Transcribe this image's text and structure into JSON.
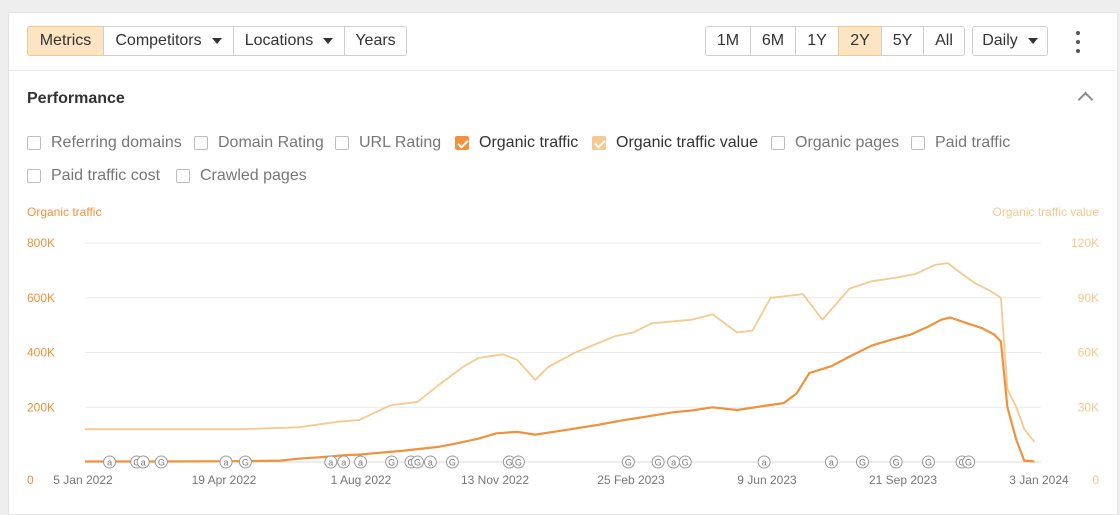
{
  "toolbar": {
    "tabs": [
      {
        "label": "Metrics",
        "active": true,
        "caret": false
      },
      {
        "label": "Competitors",
        "active": false,
        "caret": true
      },
      {
        "label": "Locations",
        "active": false,
        "caret": true
      },
      {
        "label": "Years",
        "active": false,
        "caret": false
      }
    ],
    "ranges": [
      {
        "label": "1M",
        "active": false
      },
      {
        "label": "6M",
        "active": false
      },
      {
        "label": "1Y",
        "active": false
      },
      {
        "label": "2Y",
        "active": true
      },
      {
        "label": "5Y",
        "active": false
      },
      {
        "label": "All",
        "active": false
      }
    ],
    "interval": "Daily"
  },
  "panel": {
    "title": "Performance"
  },
  "metrics": [
    {
      "label": "Referring domains",
      "checked": false,
      "color": ""
    },
    {
      "label": "Domain Rating",
      "checked": false,
      "color": ""
    },
    {
      "label": "URL Rating",
      "checked": false,
      "color": ""
    },
    {
      "label": "Organic traffic",
      "checked": true,
      "color": "#f0923b"
    },
    {
      "label": "Organic traffic value",
      "checked": true,
      "color": "#f5c98f"
    },
    {
      "label": "Organic pages",
      "checked": false,
      "color": ""
    },
    {
      "label": "Paid traffic",
      "checked": false,
      "color": ""
    },
    {
      "label": "Paid traffic cost",
      "checked": false,
      "color": ""
    },
    {
      "label": "Crawled pages",
      "checked": false,
      "color": ""
    }
  ],
  "chart_data": {
    "type": "line",
    "left_axis_title": "Organic traffic",
    "right_axis_title": "Organic traffic value",
    "y_left": {
      "ticks": [
        "0",
        "200K",
        "400K",
        "600K",
        "800K"
      ],
      "min": 0,
      "max": 800000,
      "color": "#f0923b"
    },
    "y_right": {
      "ticks": [
        "0",
        "30K",
        "60K",
        "90K",
        "120K"
      ],
      "min": 0,
      "max": 120000,
      "color": "#f5c98f"
    },
    "x_ticks": [
      "5 Jan 2022",
      "19 Apr 2022",
      "1 Aug 2022",
      "13 Nov 2022",
      "25 Feb 2023",
      "9 Jun 2023",
      "21 Sep 2023",
      "3 Jan 2024"
    ],
    "x_range": [
      "2022-01-01",
      "2024-01-10"
    ],
    "grid": true,
    "series": [
      {
        "name": "Organic traffic",
        "axis": "left",
        "color": "#f0923b",
        "points": [
          [
            "2022-01-01",
            2000
          ],
          [
            "2022-03-01",
            2000
          ],
          [
            "2022-05-01",
            3000
          ],
          [
            "2022-06-01",
            5000
          ],
          [
            "2022-06-15",
            12000
          ],
          [
            "2022-07-10",
            20000
          ],
          [
            "2022-07-20",
            25000
          ],
          [
            "2022-08-01",
            27000
          ],
          [
            "2022-08-20",
            35000
          ],
          [
            "2022-09-01",
            40000
          ],
          [
            "2022-10-01",
            55000
          ],
          [
            "2022-10-15",
            68000
          ],
          [
            "2022-11-01",
            85000
          ],
          [
            "2022-11-15",
            105000
          ],
          [
            "2022-12-01",
            110000
          ],
          [
            "2022-12-15",
            100000
          ],
          [
            "2023-01-01",
            112000
          ],
          [
            "2023-02-01",
            135000
          ],
          [
            "2023-02-20",
            152000
          ],
          [
            "2023-03-10",
            165000
          ],
          [
            "2023-04-01",
            182000
          ],
          [
            "2023-04-15",
            188000
          ],
          [
            "2023-05-01",
            200000
          ],
          [
            "2023-05-20",
            190000
          ],
          [
            "2023-06-10",
            205000
          ],
          [
            "2023-06-25",
            215000
          ],
          [
            "2023-07-05",
            250000
          ],
          [
            "2023-07-15",
            325000
          ],
          [
            "2023-08-01",
            350000
          ],
          [
            "2023-08-15",
            385000
          ],
          [
            "2023-09-01",
            425000
          ],
          [
            "2023-09-15",
            445000
          ],
          [
            "2023-10-01",
            465000
          ],
          [
            "2023-10-15",
            495000
          ],
          [
            "2023-10-25",
            520000
          ],
          [
            "2023-11-01",
            528000
          ],
          [
            "2023-11-15",
            505000
          ],
          [
            "2023-11-25",
            490000
          ],
          [
            "2023-12-05",
            465000
          ],
          [
            "2023-12-10",
            440000
          ],
          [
            "2023-12-15",
            200000
          ],
          [
            "2023-12-22",
            80000
          ],
          [
            "2023-12-28",
            5000
          ],
          [
            "2024-01-05",
            2000
          ]
        ]
      },
      {
        "name": "Organic traffic value",
        "axis": "right",
        "color": "#f5c98f",
        "points": [
          [
            "2022-01-01",
            18000
          ],
          [
            "2022-02-01",
            18000
          ],
          [
            "2022-03-01",
            18000
          ],
          [
            "2022-05-01",
            18000
          ],
          [
            "2022-06-15",
            19000
          ],
          [
            "2022-07-15",
            22000
          ],
          [
            "2022-08-01",
            23000
          ],
          [
            "2022-08-25",
            31000
          ],
          [
            "2022-09-15",
            33000
          ],
          [
            "2022-10-01",
            42000
          ],
          [
            "2022-10-20",
            52000
          ],
          [
            "2022-11-01",
            57000
          ],
          [
            "2022-11-20",
            59000
          ],
          [
            "2022-12-01",
            56000
          ],
          [
            "2022-12-15",
            45000
          ],
          [
            "2022-12-25",
            52000
          ],
          [
            "2023-01-15",
            60000
          ],
          [
            "2023-02-15",
            69000
          ],
          [
            "2023-03-01",
            71000
          ],
          [
            "2023-03-15",
            76000
          ],
          [
            "2023-04-15",
            78000
          ],
          [
            "2023-05-01",
            81000
          ],
          [
            "2023-05-20",
            71000
          ],
          [
            "2023-06-01",
            72000
          ],
          [
            "2023-06-15",
            90000
          ],
          [
            "2023-07-10",
            92000
          ],
          [
            "2023-07-25",
            78000
          ],
          [
            "2023-08-15",
            95000
          ],
          [
            "2023-09-01",
            99000
          ],
          [
            "2023-09-20",
            101000
          ],
          [
            "2023-10-05",
            103000
          ],
          [
            "2023-10-20",
            108000
          ],
          [
            "2023-10-30",
            109000
          ],
          [
            "2023-11-10",
            103000
          ],
          [
            "2023-11-20",
            98000
          ],
          [
            "2023-12-01",
            94000
          ],
          [
            "2023-12-10",
            90000
          ],
          [
            "2023-12-15",
            40000
          ],
          [
            "2023-12-22",
            30000
          ],
          [
            "2023-12-28",
            18000
          ],
          [
            "2024-01-05",
            11000
          ]
        ]
      }
    ],
    "annotations": [
      {
        "date": "2022-01-20",
        "label": "a"
      },
      {
        "date": "2022-02-10",
        "label": "G"
      },
      {
        "date": "2022-02-15",
        "label": "a"
      },
      {
        "date": "2022-03-01",
        "label": "G"
      },
      {
        "date": "2022-04-20",
        "label": "a"
      },
      {
        "date": "2022-05-05",
        "label": "G"
      },
      {
        "date": "2022-07-10",
        "label": "a"
      },
      {
        "date": "2022-07-20",
        "label": "a"
      },
      {
        "date": "2022-08-02",
        "label": "a"
      },
      {
        "date": "2022-08-26",
        "label": "G"
      },
      {
        "date": "2022-09-10",
        "label": "G"
      },
      {
        "date": "2022-09-15",
        "label": "G"
      },
      {
        "date": "2022-09-25",
        "label": "a"
      },
      {
        "date": "2022-10-12",
        "label": "G"
      },
      {
        "date": "2022-11-25",
        "label": "G"
      },
      {
        "date": "2022-12-02",
        "label": "G"
      },
      {
        "date": "2023-02-25",
        "label": "G"
      },
      {
        "date": "2023-03-20",
        "label": "G"
      },
      {
        "date": "2023-04-01",
        "label": "a"
      },
      {
        "date": "2023-04-10",
        "label": "G"
      },
      {
        "date": "2023-06-10",
        "label": "a"
      },
      {
        "date": "2023-08-01",
        "label": "a"
      },
      {
        "date": "2023-08-25",
        "label": "G"
      },
      {
        "date": "2023-09-20",
        "label": "G"
      },
      {
        "date": "2023-10-15",
        "label": "G"
      },
      {
        "date": "2023-11-10",
        "label": "G"
      },
      {
        "date": "2023-11-15",
        "label": "G"
      }
    ]
  }
}
